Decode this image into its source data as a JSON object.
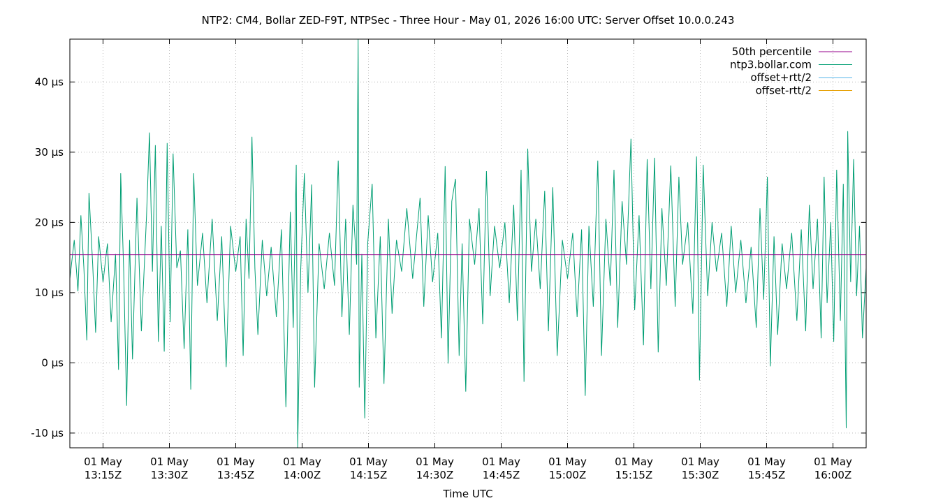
{
  "chart_data": {
    "type": "line",
    "title": "NTP2: CM4, Bollar ZED-F9T, NTPSec - Three Hour - May 01, 2026 16:00 UTC: Server Offset 10.0.0.243",
    "xlabel": "Time UTC",
    "ylabel": "",
    "y_unit": "µs",
    "ylim": [
      -12.1,
      46.1
    ],
    "xlim": [
      "2026-05-01T13:07:30Z",
      "2026-05-01T16:07:30Z"
    ],
    "y_ticks": [
      {
        "value": -10,
        "label": "-10 µs"
      },
      {
        "value": 0,
        "label": "0 µs"
      },
      {
        "value": 10,
        "label": "10 µs"
      },
      {
        "value": 20,
        "label": "20 µs"
      },
      {
        "value": 30,
        "label": "30 µs"
      },
      {
        "value": 40,
        "label": "40 µs"
      }
    ],
    "x_ticks": [
      {
        "time": "2026-05-01T13:15:00Z",
        "line1": "01 May",
        "line2": "13:15Z"
      },
      {
        "time": "2026-05-01T13:30:00Z",
        "line1": "01 May",
        "line2": "13:30Z"
      },
      {
        "time": "2026-05-01T13:45:00Z",
        "line1": "01 May",
        "line2": "13:45Z"
      },
      {
        "time": "2026-05-01T14:00:00Z",
        "line1": "01 May",
        "line2": "14:00Z"
      },
      {
        "time": "2026-05-01T14:15:00Z",
        "line1": "01 May",
        "line2": "14:15Z"
      },
      {
        "time": "2026-05-01T14:30:00Z",
        "line1": "01 May",
        "line2": "14:30Z"
      },
      {
        "time": "2026-05-01T14:45:00Z",
        "line1": "01 May",
        "line2": "14:45Z"
      },
      {
        "time": "2026-05-01T15:00:00Z",
        "line1": "01 May",
        "line2": "15:00Z"
      },
      {
        "time": "2026-05-01T15:15:00Z",
        "line1": "01 May",
        "line2": "15:15Z"
      },
      {
        "time": "2026-05-01T15:30:00Z",
        "line1": "01 May",
        "line2": "15:30Z"
      },
      {
        "time": "2026-05-01T15:45:00Z",
        "line1": "01 May",
        "line2": "15:45Z"
      },
      {
        "time": "2026-05-01T16:00:00Z",
        "line1": "01 May",
        "line2": "16:00Z"
      }
    ],
    "grid": true,
    "legend_position": "top-right",
    "series": [
      {
        "name": "50th percentile",
        "color": "#94008b",
        "kind": "hline",
        "value": 15.4
      },
      {
        "name": "ntp3.bollar.com",
        "color": "#009e73",
        "kind": "line",
        "points": [
          [
            "2026-05-01T13:07:30Z",
            12.0
          ],
          [
            "2026-05-01T13:08:30Z",
            17.5
          ],
          [
            "2026-05-01T13:09:20Z",
            10.2
          ],
          [
            "2026-05-01T13:10:00Z",
            21.0
          ],
          [
            "2026-05-01T13:10:40Z",
            13.5
          ],
          [
            "2026-05-01T13:11:20Z",
            3.2
          ],
          [
            "2026-05-01T13:11:50Z",
            24.2
          ],
          [
            "2026-05-01T13:12:40Z",
            14.0
          ],
          [
            "2026-05-01T13:13:20Z",
            4.3
          ],
          [
            "2026-05-01T13:14:00Z",
            18.0
          ],
          [
            "2026-05-01T13:15:00Z",
            11.5
          ],
          [
            "2026-05-01T13:16:00Z",
            17.0
          ],
          [
            "2026-05-01T13:16:50Z",
            5.8
          ],
          [
            "2026-05-01T13:17:50Z",
            15.5
          ],
          [
            "2026-05-01T13:18:30Z",
            -1.0
          ],
          [
            "2026-05-01T13:19:00Z",
            27.0
          ],
          [
            "2026-05-01T13:19:40Z",
            13.0
          ],
          [
            "2026-05-01T13:20:20Z",
            -6.1
          ],
          [
            "2026-05-01T13:21:00Z",
            17.5
          ],
          [
            "2026-05-01T13:21:40Z",
            0.5
          ],
          [
            "2026-05-01T13:22:40Z",
            23.5
          ],
          [
            "2026-05-01T13:23:40Z",
            4.5
          ],
          [
            "2026-05-01T13:24:50Z",
            21.0
          ],
          [
            "2026-05-01T13:25:30Z",
            32.8
          ],
          [
            "2026-05-01T13:26:10Z",
            13.0
          ],
          [
            "2026-05-01T13:26:50Z",
            31.0
          ],
          [
            "2026-05-01T13:27:30Z",
            3.0
          ],
          [
            "2026-05-01T13:28:10Z",
            19.5
          ],
          [
            "2026-05-01T13:28:50Z",
            1.6
          ],
          [
            "2026-05-01T13:29:30Z",
            31.3
          ],
          [
            "2026-05-01T13:30:10Z",
            5.8
          ],
          [
            "2026-05-01T13:30:50Z",
            29.8
          ],
          [
            "2026-05-01T13:31:40Z",
            13.5
          ],
          [
            "2026-05-01T13:32:30Z",
            16.0
          ],
          [
            "2026-05-01T13:33:20Z",
            2.0
          ],
          [
            "2026-05-01T13:34:10Z",
            19.0
          ],
          [
            "2026-05-01T13:34:50Z",
            -3.8
          ],
          [
            "2026-05-01T13:35:30Z",
            27.0
          ],
          [
            "2026-05-01T13:36:20Z",
            11.0
          ],
          [
            "2026-05-01T13:37:30Z",
            18.5
          ],
          [
            "2026-05-01T13:38:30Z",
            8.5
          ],
          [
            "2026-05-01T13:39:40Z",
            20.5
          ],
          [
            "2026-05-01T13:40:50Z",
            6.0
          ],
          [
            "2026-05-01T13:41:50Z",
            18.0
          ],
          [
            "2026-05-01T13:42:50Z",
            -0.6
          ],
          [
            "2026-05-01T13:43:50Z",
            19.5
          ],
          [
            "2026-05-01T13:45:00Z",
            13.0
          ],
          [
            "2026-05-01T13:46:00Z",
            18.0
          ],
          [
            "2026-05-01T13:46:40Z",
            1.0
          ],
          [
            "2026-05-01T13:47:20Z",
            20.5
          ],
          [
            "2026-05-01T13:48:00Z",
            12.0
          ],
          [
            "2026-05-01T13:48:40Z",
            32.2
          ],
          [
            "2026-05-01T13:49:20Z",
            13.5
          ],
          [
            "2026-05-01T13:50:00Z",
            4.0
          ],
          [
            "2026-05-01T13:51:00Z",
            17.5
          ],
          [
            "2026-05-01T13:52:00Z",
            9.5
          ],
          [
            "2026-05-01T13:53:00Z",
            16.5
          ],
          [
            "2026-05-01T13:54:10Z",
            6.5
          ],
          [
            "2026-05-01T13:55:20Z",
            19.0
          ],
          [
            "2026-05-01T13:56:20Z",
            -6.3
          ],
          [
            "2026-05-01T13:57:20Z",
            21.5
          ],
          [
            "2026-05-01T13:58:00Z",
            5.0
          ],
          [
            "2026-05-01T13:58:40Z",
            28.2
          ],
          [
            "2026-05-01T13:59:00Z",
            -12.1
          ],
          [
            "2026-05-01T13:59:40Z",
            13.0
          ],
          [
            "2026-05-01T14:00:30Z",
            27.0
          ],
          [
            "2026-05-01T14:01:20Z",
            10.0
          ],
          [
            "2026-05-01T14:02:10Z",
            25.4
          ],
          [
            "2026-05-01T14:02:50Z",
            -3.5
          ],
          [
            "2026-05-01T14:03:50Z",
            17.0
          ],
          [
            "2026-05-01T14:05:00Z",
            10.5
          ],
          [
            "2026-05-01T14:06:10Z",
            18.5
          ],
          [
            "2026-05-01T14:07:20Z",
            11.0
          ],
          [
            "2026-05-01T14:08:10Z",
            28.8
          ],
          [
            "2026-05-01T14:09:00Z",
            6.5
          ],
          [
            "2026-05-01T14:09:50Z",
            20.5
          ],
          [
            "2026-05-01T14:10:40Z",
            4.0
          ],
          [
            "2026-05-01T14:11:30Z",
            22.5
          ],
          [
            "2026-05-01T14:12:20Z",
            14.0
          ],
          [
            "2026-05-01T14:12:40Z",
            46.1
          ],
          [
            "2026-05-01T14:12:55Z",
            -3.5
          ],
          [
            "2026-05-01T14:13:30Z",
            15.5
          ],
          [
            "2026-05-01T14:14:10Z",
            -7.9
          ],
          [
            "2026-05-01T14:14:50Z",
            17.0
          ],
          [
            "2026-05-01T14:15:50Z",
            25.5
          ],
          [
            "2026-05-01T14:16:40Z",
            3.5
          ],
          [
            "2026-05-01T14:17:40Z",
            18.0
          ],
          [
            "2026-05-01T14:18:30Z",
            -3.0
          ],
          [
            "2026-05-01T14:19:30Z",
            20.5
          ],
          [
            "2026-05-01T14:20:20Z",
            7.0
          ],
          [
            "2026-05-01T14:21:20Z",
            17.5
          ],
          [
            "2026-05-01T14:22:30Z",
            13.0
          ],
          [
            "2026-05-01T14:23:40Z",
            22.0
          ],
          [
            "2026-05-01T14:25:00Z",
            12.0
          ],
          [
            "2026-05-01T14:26:00Z",
            19.0
          ],
          [
            "2026-05-01T14:26:40Z",
            23.5
          ],
          [
            "2026-05-01T14:27:30Z",
            8.0
          ],
          [
            "2026-05-01T14:28:30Z",
            21.0
          ],
          [
            "2026-05-01T14:29:30Z",
            11.5
          ],
          [
            "2026-05-01T14:30:40Z",
            18.5
          ],
          [
            "2026-05-01T14:31:30Z",
            3.5
          ],
          [
            "2026-05-01T14:32:20Z",
            28.0
          ],
          [
            "2026-05-01T14:33:00Z",
            -0.1
          ],
          [
            "2026-05-01T14:33:50Z",
            23.0
          ],
          [
            "2026-05-01T14:34:40Z",
            26.2
          ],
          [
            "2026-05-01T14:35:30Z",
            1.0
          ],
          [
            "2026-05-01T14:36:10Z",
            17.0
          ],
          [
            "2026-05-01T14:37:00Z",
            -4.1
          ],
          [
            "2026-05-01T14:37:50Z",
            20.5
          ],
          [
            "2026-05-01T14:39:00Z",
            14.0
          ],
          [
            "2026-05-01T14:40:00Z",
            22.0
          ],
          [
            "2026-05-01T14:40:50Z",
            5.5
          ],
          [
            "2026-05-01T14:41:40Z",
            27.3
          ],
          [
            "2026-05-01T14:42:30Z",
            9.5
          ],
          [
            "2026-05-01T14:43:30Z",
            19.5
          ],
          [
            "2026-05-01T14:44:40Z",
            13.5
          ],
          [
            "2026-05-01T14:45:50Z",
            20.0
          ],
          [
            "2026-05-01T14:46:50Z",
            8.5
          ],
          [
            "2026-05-01T14:47:50Z",
            22.5
          ],
          [
            "2026-05-01T14:48:40Z",
            6.0
          ],
          [
            "2026-05-01T14:49:30Z",
            27.5
          ],
          [
            "2026-05-01T14:50:10Z",
            -2.7
          ],
          [
            "2026-05-01T14:51:00Z",
            30.5
          ],
          [
            "2026-05-01T14:51:50Z",
            13.0
          ],
          [
            "2026-05-01T14:52:50Z",
            20.5
          ],
          [
            "2026-05-01T14:53:50Z",
            10.5
          ],
          [
            "2026-05-01T14:54:50Z",
            24.5
          ],
          [
            "2026-05-01T14:55:40Z",
            4.5
          ],
          [
            "2026-05-01T14:56:40Z",
            25.0
          ],
          [
            "2026-05-01T14:57:40Z",
            1.0
          ],
          [
            "2026-05-01T14:58:50Z",
            17.5
          ],
          [
            "2026-05-01T15:00:00Z",
            12.0
          ],
          [
            "2026-05-01T15:01:10Z",
            18.5
          ],
          [
            "2026-05-01T15:02:10Z",
            6.5
          ],
          [
            "2026-05-01T15:03:10Z",
            19.0
          ],
          [
            "2026-05-01T15:04:00Z",
            -4.7
          ],
          [
            "2026-05-01T15:04:50Z",
            19.5
          ],
          [
            "2026-05-01T15:05:50Z",
            8.0
          ],
          [
            "2026-05-01T15:06:50Z",
            28.8
          ],
          [
            "2026-05-01T15:07:40Z",
            1.0
          ],
          [
            "2026-05-01T15:08:40Z",
            20.5
          ],
          [
            "2026-05-01T15:09:40Z",
            11.0
          ],
          [
            "2026-05-01T15:10:30Z",
            27.5
          ],
          [
            "2026-05-01T15:11:20Z",
            5.0
          ],
          [
            "2026-05-01T15:12:20Z",
            23.0
          ],
          [
            "2026-05-01T15:13:20Z",
            14.0
          ],
          [
            "2026-05-01T15:14:20Z",
            31.9
          ],
          [
            "2026-05-01T15:15:10Z",
            7.5
          ],
          [
            "2026-05-01T15:16:10Z",
            21.0
          ],
          [
            "2026-05-01T15:17:10Z",
            2.5
          ],
          [
            "2026-05-01T15:18:00Z",
            29.0
          ],
          [
            "2026-05-01T15:18:50Z",
            10.5
          ],
          [
            "2026-05-01T15:19:40Z",
            29.2
          ],
          [
            "2026-05-01T15:20:30Z",
            1.5
          ],
          [
            "2026-05-01T15:21:20Z",
            22.0
          ],
          [
            "2026-05-01T15:22:20Z",
            11.0
          ],
          [
            "2026-05-01T15:23:20Z",
            28.1
          ],
          [
            "2026-05-01T15:24:20Z",
            8.0
          ],
          [
            "2026-05-01T15:25:10Z",
            26.5
          ],
          [
            "2026-05-01T15:26:00Z",
            14.0
          ],
          [
            "2026-05-01T15:27:10Z",
            20.0
          ],
          [
            "2026-05-01T15:28:20Z",
            7.0
          ],
          [
            "2026-05-01T15:29:10Z",
            29.4
          ],
          [
            "2026-05-01T15:29:50Z",
            -2.5
          ],
          [
            "2026-05-01T15:30:40Z",
            28.2
          ],
          [
            "2026-05-01T15:31:40Z",
            9.5
          ],
          [
            "2026-05-01T15:32:40Z",
            20.0
          ],
          [
            "2026-05-01T15:33:40Z",
            13.0
          ],
          [
            "2026-05-01T15:34:50Z",
            18.5
          ],
          [
            "2026-05-01T15:36:00Z",
            8.0
          ],
          [
            "2026-05-01T15:37:00Z",
            19.5
          ],
          [
            "2026-05-01T15:38:00Z",
            10.0
          ],
          [
            "2026-05-01T15:39:10Z",
            17.5
          ],
          [
            "2026-05-01T15:40:20Z",
            8.5
          ],
          [
            "2026-05-01T15:41:30Z",
            16.5
          ],
          [
            "2026-05-01T15:42:40Z",
            5.0
          ],
          [
            "2026-05-01T15:43:30Z",
            22.0
          ],
          [
            "2026-05-01T15:44:20Z",
            9.0
          ],
          [
            "2026-05-01T15:45:10Z",
            26.5
          ],
          [
            "2026-05-01T15:45:50Z",
            -0.5
          ],
          [
            "2026-05-01T15:46:40Z",
            18.0
          ],
          [
            "2026-05-01T15:47:30Z",
            4.0
          ],
          [
            "2026-05-01T15:48:30Z",
            17.0
          ],
          [
            "2026-05-01T15:49:30Z",
            10.5
          ],
          [
            "2026-05-01T15:50:40Z",
            18.5
          ],
          [
            "2026-05-01T15:51:50Z",
            6.0
          ],
          [
            "2026-05-01T15:52:50Z",
            19.0
          ],
          [
            "2026-05-01T15:53:50Z",
            4.5
          ],
          [
            "2026-05-01T15:54:40Z",
            22.5
          ],
          [
            "2026-05-01T15:55:30Z",
            10.5
          ],
          [
            "2026-05-01T15:56:30Z",
            20.5
          ],
          [
            "2026-05-01T15:57:20Z",
            3.5
          ],
          [
            "2026-05-01T15:58:00Z",
            26.5
          ],
          [
            "2026-05-01T15:58:40Z",
            8.5
          ],
          [
            "2026-05-01T15:59:30Z",
            20.0
          ],
          [
            "2026-05-01T16:00:10Z",
            3.0
          ],
          [
            "2026-05-01T16:00:50Z",
            27.5
          ],
          [
            "2026-05-01T16:01:40Z",
            6.0
          ],
          [
            "2026-05-01T16:02:20Z",
            25.5
          ],
          [
            "2026-05-01T16:03:00Z",
            -9.3
          ],
          [
            "2026-05-01T16:03:20Z",
            33.0
          ],
          [
            "2026-05-01T16:04:00Z",
            11.5
          ],
          [
            "2026-05-01T16:04:40Z",
            29.0
          ],
          [
            "2026-05-01T16:05:20Z",
            9.5
          ],
          [
            "2026-05-01T16:06:00Z",
            19.5
          ],
          [
            "2026-05-01T16:06:40Z",
            3.5
          ],
          [
            "2026-05-01T16:07:30Z",
            13.5
          ]
        ]
      },
      {
        "name": "offset+rtt/2",
        "color": "#56b4e9",
        "kind": "legend-only"
      },
      {
        "name": "offset-rtt/2",
        "color": "#e69f00",
        "kind": "legend-only"
      }
    ]
  }
}
